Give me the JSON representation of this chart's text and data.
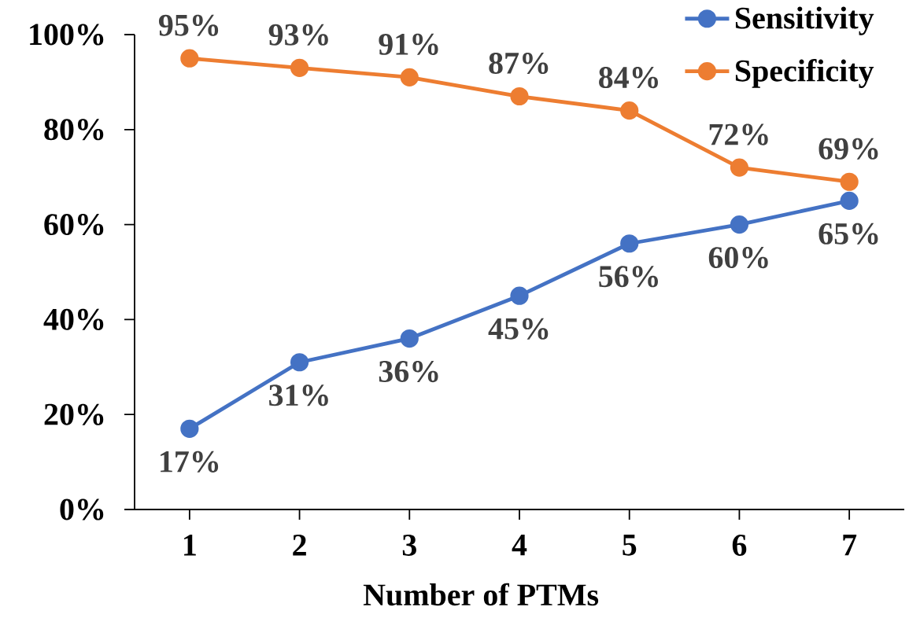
{
  "chart_data": {
    "type": "line",
    "xlabel": "Number of PTMs",
    "categories": [
      "1",
      "2",
      "3",
      "4",
      "5",
      "6",
      "7"
    ],
    "series": [
      {
        "name": "Sensitivity",
        "color": "#4472c4",
        "values": [
          17,
          31,
          36,
          45,
          56,
          60,
          65
        ],
        "value_labels": [
          "17%",
          "31%",
          "36%",
          "45%",
          "56%",
          "60%",
          "65%"
        ]
      },
      {
        "name": "Specificity",
        "color": "#ed7d31",
        "values": [
          95,
          93,
          91,
          87,
          84,
          72,
          69
        ],
        "value_labels": [
          "95%",
          "93%",
          "91%",
          "87%",
          "84%",
          "72%",
          "69%"
        ]
      }
    ],
    "ylim": [
      0,
      100
    ],
    "yticks": [
      {
        "value": 0,
        "label": "0%"
      },
      {
        "value": 20,
        "label": "20%"
      },
      {
        "value": 40,
        "label": "40%"
      },
      {
        "value": 60,
        "label": "60%"
      },
      {
        "value": 80,
        "label": "80%"
      },
      {
        "value": 100,
        "label": "100%"
      }
    ],
    "legend": "top right",
    "marker": "circle",
    "line_style": "solid"
  }
}
